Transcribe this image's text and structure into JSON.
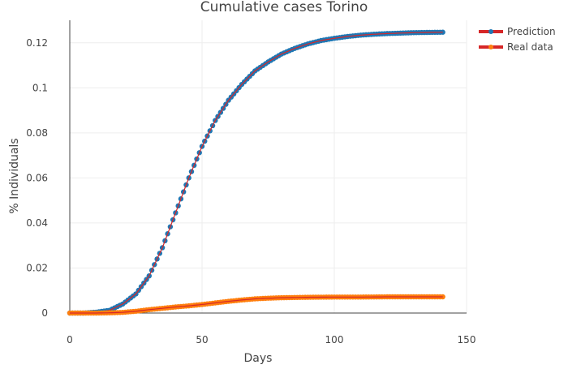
{
  "chart_data": {
    "type": "line",
    "title": "Cumulative cases Torino",
    "xlabel": "Days",
    "ylabel": "% Individuals",
    "xlim": [
      0,
      150
    ],
    "ylim": [
      0,
      0.13
    ],
    "xticks": [
      0,
      50,
      100,
      150
    ],
    "xtick_labels": [
      "0",
      "50",
      "100",
      "150"
    ],
    "yticks": [
      0,
      0.02,
      0.04,
      0.06,
      0.08,
      0.1,
      0.12
    ],
    "ytick_labels": [
      "0",
      "0.02",
      "0.04",
      "0.06",
      "0.08",
      "0.1",
      "0.12"
    ],
    "grid": true,
    "legend_position": "top-right",
    "series": [
      {
        "name": "Prediction",
        "color": "#1f77b4",
        "line_color": "#d62728",
        "x": [
          0,
          5,
          10,
          15,
          20,
          25,
          30,
          35,
          40,
          45,
          50,
          55,
          60,
          65,
          70,
          75,
          80,
          85,
          90,
          95,
          100,
          105,
          110,
          115,
          120,
          125,
          130,
          135,
          141
        ],
        "y": [
          0,
          0,
          0.0004,
          0.0012,
          0.004,
          0.0085,
          0.0165,
          0.029,
          0.0445,
          0.06,
          0.074,
          0.0855,
          0.0945,
          0.1015,
          0.1075,
          0.1115,
          0.115,
          0.1175,
          0.1195,
          0.121,
          0.122,
          0.1228,
          0.1234,
          0.1238,
          0.1241,
          0.1243,
          0.1245,
          0.1246,
          0.1247
        ]
      },
      {
        "name": "Real data",
        "color": "#ff7f0e",
        "line_color": "#d62728",
        "x": [
          0,
          5,
          10,
          15,
          20,
          25,
          30,
          35,
          40,
          45,
          50,
          55,
          60,
          65,
          70,
          75,
          80,
          90,
          100,
          110,
          120,
          130,
          141
        ],
        "y": [
          0,
          0,
          0,
          0.0001,
          0.0003,
          0.0008,
          0.0015,
          0.0021,
          0.0027,
          0.0032,
          0.0038,
          0.0045,
          0.0052,
          0.0058,
          0.0063,
          0.0066,
          0.0068,
          0.007,
          0.0071,
          0.0071,
          0.0072,
          0.0072,
          0.0072
        ]
      }
    ]
  }
}
